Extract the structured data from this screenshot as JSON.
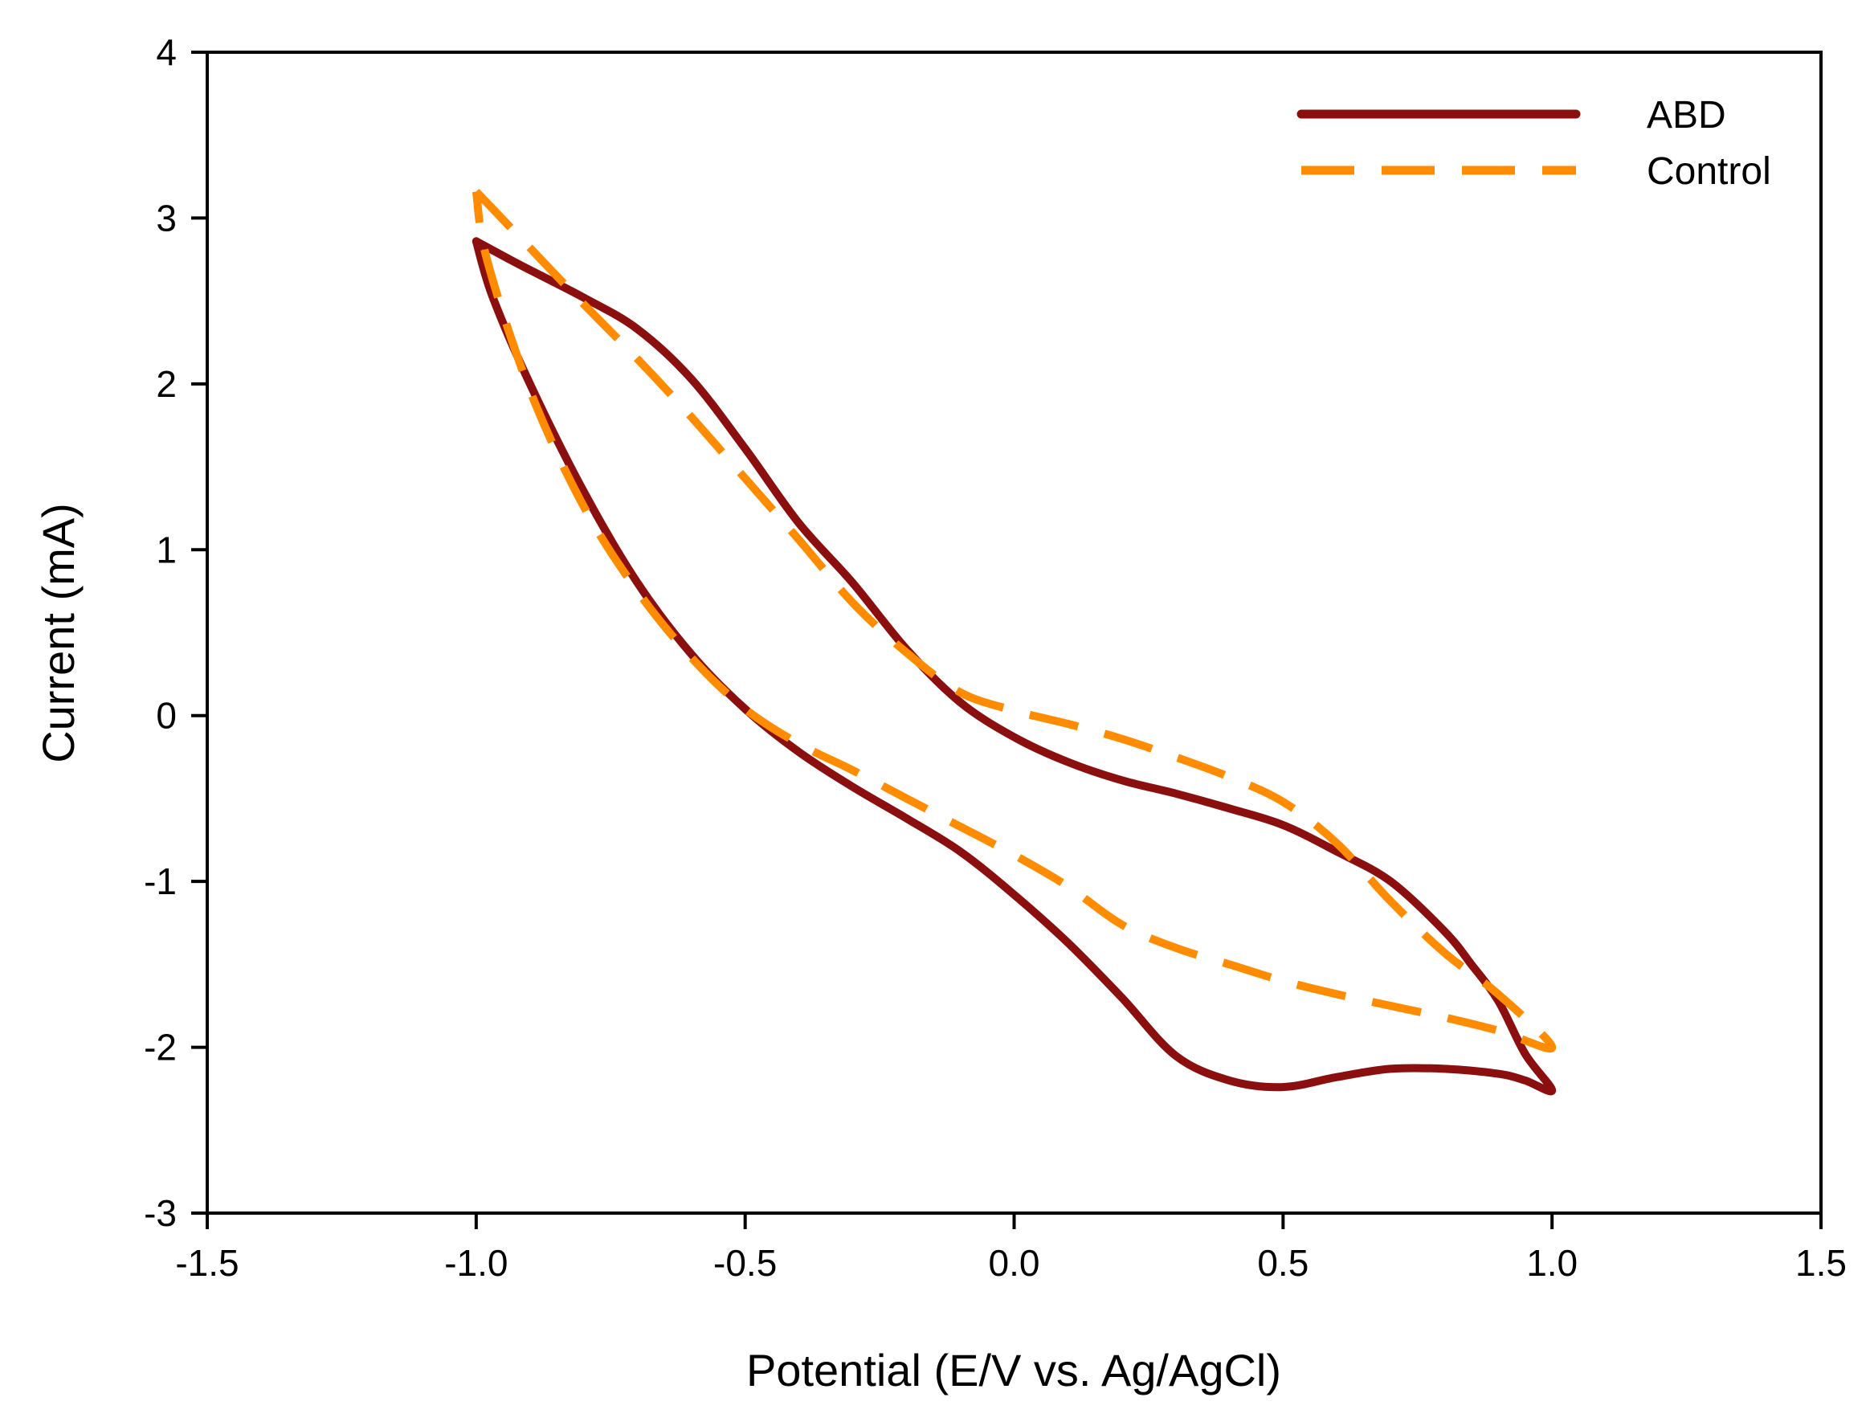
{
  "chart_data": {
    "type": "line",
    "title": "",
    "xlabel": "Potential (E/V vs. Ag/AgCl)",
    "ylabel": "Current (mA)",
    "xlim": [
      -1.5,
      1.5
    ],
    "ylim": [
      -3,
      4
    ],
    "xticks": [
      -1.5,
      -1.0,
      -0.5,
      0.0,
      0.5,
      1.0,
      1.5
    ],
    "xtick_labels": [
      "-1.5",
      "-1.0",
      "-0.5",
      "0.0",
      "0.5",
      "1.0",
      "1.5"
    ],
    "yticks": [
      -3,
      -2,
      -1,
      0,
      1,
      2,
      3,
      4
    ],
    "ytick_labels": [
      "-3",
      "-2",
      "-1",
      "0",
      "1",
      "2",
      "3",
      "4"
    ],
    "grid": false,
    "legend_position": "top-right",
    "series": [
      {
        "name": "ABD",
        "color": "#8b0f0f",
        "style": "solid",
        "points": [
          [
            -1.0,
            2.86
          ],
          [
            -0.92,
            2.72
          ],
          [
            -0.8,
            2.52
          ],
          [
            -0.7,
            2.33
          ],
          [
            -0.6,
            2.03
          ],
          [
            -0.5,
            1.61
          ],
          [
            -0.4,
            1.16
          ],
          [
            -0.3,
            0.8
          ],
          [
            -0.2,
            0.4
          ],
          [
            -0.1,
            0.08
          ],
          [
            0.0,
            -0.13
          ],
          [
            0.1,
            -0.28
          ],
          [
            0.2,
            -0.39
          ],
          [
            0.3,
            -0.47
          ],
          [
            0.4,
            -0.56
          ],
          [
            0.5,
            -0.66
          ],
          [
            0.6,
            -0.82
          ],
          [
            0.7,
            -1.0
          ],
          [
            0.8,
            -1.3
          ],
          [
            0.85,
            -1.5
          ],
          [
            0.9,
            -1.72
          ],
          [
            0.95,
            -2.04
          ],
          [
            1.0,
            -2.26
          ],
          [
            0.95,
            -2.2
          ],
          [
            0.9,
            -2.16
          ],
          [
            0.8,
            -2.13
          ],
          [
            0.7,
            -2.13
          ],
          [
            0.6,
            -2.18
          ],
          [
            0.5,
            -2.24
          ],
          [
            0.4,
            -2.2
          ],
          [
            0.3,
            -2.05
          ],
          [
            0.2,
            -1.7
          ],
          [
            0.1,
            -1.37
          ],
          [
            0.0,
            -1.08
          ],
          [
            -0.1,
            -0.82
          ],
          [
            -0.2,
            -0.62
          ],
          [
            -0.3,
            -0.43
          ],
          [
            -0.4,
            -0.22
          ],
          [
            -0.5,
            0.04
          ],
          [
            -0.6,
            0.37
          ],
          [
            -0.7,
            0.8
          ],
          [
            -0.8,
            1.35
          ],
          [
            -0.9,
            2.0
          ],
          [
            -0.97,
            2.53
          ],
          [
            -1.0,
            2.86
          ]
        ]
      },
      {
        "name": "Control",
        "color": "#ff8c00",
        "style": "dashed",
        "points": [
          [
            -1.0,
            3.16
          ],
          [
            -0.9,
            2.82
          ],
          [
            -0.8,
            2.48
          ],
          [
            -0.7,
            2.15
          ],
          [
            -0.6,
            1.8
          ],
          [
            -0.5,
            1.43
          ],
          [
            -0.4,
            1.06
          ],
          [
            -0.3,
            0.68
          ],
          [
            -0.2,
            0.38
          ],
          [
            -0.1,
            0.14
          ],
          [
            0.0,
            0.03
          ],
          [
            0.1,
            -0.05
          ],
          [
            0.2,
            -0.14
          ],
          [
            0.3,
            -0.25
          ],
          [
            0.4,
            -0.37
          ],
          [
            0.5,
            -0.52
          ],
          [
            0.6,
            -0.77
          ],
          [
            0.7,
            -1.12
          ],
          [
            0.8,
            -1.43
          ],
          [
            0.9,
            -1.68
          ],
          [
            1.0,
            -2.0
          ],
          [
            0.9,
            -1.9
          ],
          [
            0.8,
            -1.82
          ],
          [
            0.7,
            -1.75
          ],
          [
            0.6,
            -1.68
          ],
          [
            0.5,
            -1.6
          ],
          [
            0.4,
            -1.5
          ],
          [
            0.3,
            -1.4
          ],
          [
            0.2,
            -1.26
          ],
          [
            0.1,
            -1.03
          ],
          [
            0.0,
            -0.84
          ],
          [
            -0.1,
            -0.67
          ],
          [
            -0.2,
            -0.5
          ],
          [
            -0.3,
            -0.33
          ],
          [
            -0.4,
            -0.17
          ],
          [
            -0.5,
            0.04
          ],
          [
            -0.6,
            0.35
          ],
          [
            -0.7,
            0.75
          ],
          [
            -0.8,
            1.26
          ],
          [
            -0.9,
            1.96
          ],
          [
            -0.98,
            2.75
          ],
          [
            -1.0,
            3.16
          ]
        ]
      }
    ]
  }
}
